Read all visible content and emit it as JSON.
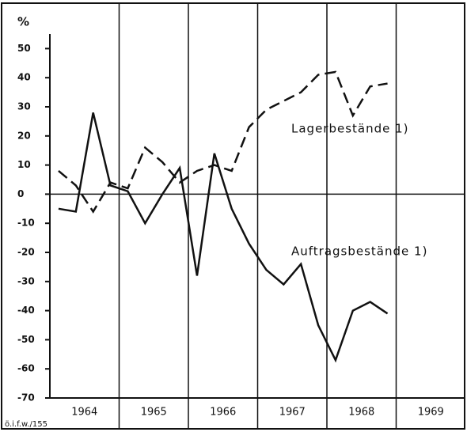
{
  "chart_data": {
    "type": "line",
    "ylabel": "%",
    "source": "ö.i.f.w./155",
    "x": [
      1964.125,
      1964.375,
      1964.625,
      1964.875,
      1965.125,
      1965.375,
      1965.625,
      1965.875,
      1966.125,
      1966.375,
      1966.625,
      1966.875,
      1967.125,
      1967.375,
      1967.625,
      1967.875,
      1968.125,
      1968.375,
      1968.625,
      1968.875
    ],
    "series": [
      {
        "name": "Lagerbestände 1)",
        "color": "#111111",
        "style": "dashed",
        "values": [
          8,
          3,
          -6,
          4,
          2,
          16,
          11,
          4,
          8,
          10,
          8,
          23,
          29,
          32,
          35,
          41,
          42,
          27,
          37,
          38
        ]
      },
      {
        "name": "Auftragsbestände 1)",
        "color": "#111111",
        "style": "solid",
        "values": [
          -5,
          -6,
          28,
          3,
          1,
          -10,
          0,
          9,
          -28,
          14,
          -5,
          -17,
          -26,
          -31,
          -24,
          -45,
          -57,
          -40,
          -37,
          -41
        ]
      }
    ],
    "xlim": [
      1964,
      1970
    ],
    "xticks": [
      {
        "value": 1964.5,
        "label": "1964"
      },
      {
        "value": 1965.5,
        "label": "1965"
      },
      {
        "value": 1966.5,
        "label": "1966"
      },
      {
        "value": 1967.5,
        "label": "1967"
      },
      {
        "value": 1968.5,
        "label": "1968"
      },
      {
        "value": 1969.5,
        "label": "1969"
      }
    ],
    "xgrid": [
      1965,
      1966,
      1967,
      1968,
      1969
    ],
    "ylim": [
      -70,
      55
    ],
    "yticks": [
      50,
      40,
      30,
      20,
      10,
      0,
      -10,
      -20,
      -30,
      -40,
      -50,
      -60,
      -70
    ],
    "zero_line": true
  }
}
